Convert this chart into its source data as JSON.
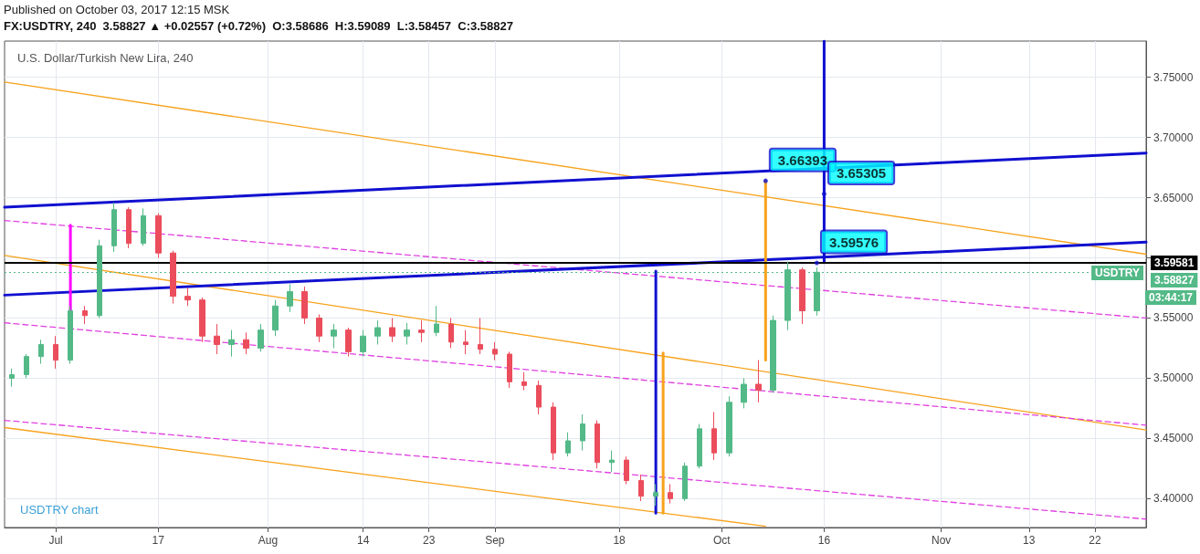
{
  "chart_data": {
    "type": "candlestick",
    "title": "U.S. Dollar/Turkish New Lira, 240",
    "subtitle": "FX:USDTRY, 240  3.58827 ▲ +0.02557 (+0.72%)  O:3.58686  H:3.59089  L:3.58457  C:3.58827",
    "annotations": [
      "Published on October 03, 2017 12:15 MSK",
      "USDTRY chart",
      "USDTRY",
      "03:44:17",
      {
        "text": "3.66393",
        "x": "2017-10-08",
        "y": 3.66393
      },
      {
        "text": "3.65305",
        "x": "2017-10-16",
        "y": 3.65305
      },
      {
        "text": "3.59576",
        "x": "2017-10-15",
        "y": 3.59576
      }
    ],
    "x": [
      "2017-06-27",
      "2017-06-29",
      "2017-07-01",
      "2017-07-03",
      "2017-07-05",
      "2017-07-07",
      "2017-07-09",
      "2017-07-11",
      "2017-07-13",
      "2017-07-15",
      "2017-07-17",
      "2017-07-19",
      "2017-07-21",
      "2017-07-23",
      "2017-07-25",
      "2017-07-27",
      "2017-07-29",
      "2017-07-31",
      "2017-08-02",
      "2017-08-04",
      "2017-08-06",
      "2017-08-08",
      "2017-08-10",
      "2017-08-12",
      "2017-08-14",
      "2017-08-16",
      "2017-08-18",
      "2017-08-20",
      "2017-08-22",
      "2017-08-24",
      "2017-08-26",
      "2017-08-28",
      "2017-08-30",
      "2017-09-01",
      "2017-09-03",
      "2017-09-05",
      "2017-09-07",
      "2017-09-09",
      "2017-09-11",
      "2017-09-13",
      "2017-09-15",
      "2017-09-17",
      "2017-09-19",
      "2017-09-21",
      "2017-09-23",
      "2017-09-25",
      "2017-09-27",
      "2017-09-29",
      "2017-10-01",
      "2017-10-03",
      "2017-10-05",
      "2017-10-07",
      "2017-10-09",
      "2017-10-11",
      "2017-10-13",
      "2017-10-15"
    ],
    "ohlc": [
      [
        3.5,
        3.508,
        3.493,
        3.503
      ],
      [
        3.503,
        3.52,
        3.5,
        3.518
      ],
      [
        3.518,
        3.532,
        3.512,
        3.528
      ],
      [
        3.528,
        3.535,
        3.508,
        3.515
      ],
      [
        3.515,
        3.56,
        3.512,
        3.556
      ],
      [
        3.556,
        3.56,
        3.545,
        3.552
      ],
      [
        3.552,
        3.615,
        3.55,
        3.61
      ],
      [
        3.61,
        3.646,
        3.605,
        3.64
      ],
      [
        3.64,
        3.642,
        3.608,
        3.612
      ],
      [
        3.612,
        3.641,
        3.61,
        3.635
      ],
      [
        3.635,
        3.637,
        3.6,
        3.604
      ],
      [
        3.604,
        3.606,
        3.562,
        3.568
      ],
      [
        3.568,
        3.575,
        3.56,
        3.565
      ],
      [
        3.565,
        3.567,
        3.53,
        3.535
      ],
      [
        3.535,
        3.545,
        3.52,
        3.528
      ],
      [
        3.528,
        3.54,
        3.518,
        3.532
      ],
      [
        3.532,
        3.538,
        3.52,
        3.525
      ],
      [
        3.525,
        3.545,
        3.522,
        3.54
      ],
      [
        3.54,
        3.565,
        3.535,
        3.56
      ],
      [
        3.56,
        3.578,
        3.555,
        3.572
      ],
      [
        3.572,
        3.576,
        3.545,
        3.55
      ],
      [
        3.55,
        3.553,
        3.53,
        3.535
      ],
      [
        3.535,
        3.545,
        3.525,
        3.54
      ],
      [
        3.54,
        3.542,
        3.518,
        3.522
      ],
      [
        3.522,
        3.54,
        3.518,
        3.535
      ],
      [
        3.535,
        3.548,
        3.528,
        3.542
      ],
      [
        3.542,
        3.55,
        3.53,
        3.535
      ],
      [
        3.535,
        3.546,
        3.528,
        3.54
      ],
      [
        3.54,
        3.548,
        3.53,
        3.538
      ],
      [
        3.538,
        3.56,
        3.535,
        3.545
      ],
      [
        3.545,
        3.55,
        3.525,
        3.53
      ],
      [
        3.53,
        3.54,
        3.52,
        3.528
      ],
      [
        3.528,
        3.55,
        3.52,
        3.524
      ],
      [
        3.524,
        3.53,
        3.515,
        3.52
      ],
      [
        3.52,
        3.522,
        3.492,
        3.497
      ],
      [
        3.497,
        3.505,
        3.49,
        3.494
      ],
      [
        3.494,
        3.498,
        3.47,
        3.476
      ],
      [
        3.476,
        3.48,
        3.432,
        3.438
      ],
      [
        3.438,
        3.455,
        3.435,
        3.448
      ],
      [
        3.448,
        3.47,
        3.44,
        3.462
      ],
      [
        3.462,
        3.465,
        3.425,
        3.43
      ],
      [
        3.43,
        3.44,
        3.422,
        3.432
      ],
      [
        3.432,
        3.435,
        3.412,
        3.415
      ],
      [
        3.415,
        3.42,
        3.398,
        3.402
      ],
      [
        3.402,
        3.412,
        3.394,
        3.405
      ],
      [
        3.405,
        3.412,
        3.396,
        3.4
      ],
      [
        3.4,
        3.43,
        3.398,
        3.427
      ],
      [
        3.427,
        3.462,
        3.425,
        3.458
      ],
      [
        3.458,
        3.472,
        3.432,
        3.438
      ],
      [
        3.438,
        3.485,
        3.435,
        3.48
      ],
      [
        3.48,
        3.5,
        3.475,
        3.495
      ],
      [
        3.495,
        3.515,
        3.48,
        3.49
      ],
      [
        3.49,
        3.552,
        3.488,
        3.548
      ],
      [
        3.548,
        3.597,
        3.54,
        3.59
      ],
      [
        3.59,
        3.592,
        3.545,
        3.556
      ],
      [
        3.556,
        3.592,
        3.552,
        3.588
      ]
    ],
    "series": [
      {
        "type": "line",
        "x": [
          "2017-06-26",
          "2017-11-29"
        ],
        "values": [
          3.746,
          3.603
        ],
        "color": "#f7a21b",
        "line_style": "solid"
      },
      {
        "type": "line",
        "x": [
          "2017-06-26",
          "2017-11-29"
        ],
        "values": [
          3.602,
          3.457
        ],
        "color": "#f7a21b",
        "line_style": "solid"
      },
      {
        "type": "line",
        "x": [
          "2017-06-26",
          "2017-10-08"
        ],
        "values": [
          3.459,
          3.377
        ],
        "color": "#f7a21b",
        "line_style": "solid"
      },
      {
        "type": "line",
        "x": [
          "2017-06-26",
          "2017-11-29"
        ],
        "values": [
          3.631,
          3.55
        ],
        "color": "#e040e0",
        "line_style": "dashed"
      },
      {
        "type": "line",
        "x": [
          "2017-06-26",
          "2017-11-29"
        ],
        "values": [
          3.546,
          3.461
        ],
        "color": "#e040e0",
        "line_style": "dashed"
      },
      {
        "type": "line",
        "x": [
          "2017-06-26",
          "2017-11-29"
        ],
        "values": [
          3.465,
          3.383
        ],
        "color": "#e040e0",
        "line_style": "dashed"
      },
      {
        "type": "line",
        "x": [
          "2017-06-26",
          "2017-11-29"
        ],
        "values": [
          3.642,
          3.687
        ],
        "color": "#1010d0",
        "line_style": "solid"
      },
      {
        "type": "line",
        "x": [
          "2017-06-26",
          "2017-11-29"
        ],
        "values": [
          3.569,
          3.613
        ],
        "color": "#1010d0",
        "line_style": "solid"
      },
      {
        "type": "line",
        "x": [
          "2017-07-05",
          "2017-07-05"
        ],
        "values": [
          3.554,
          3.627
        ],
        "color": "#ff00ff",
        "line_style": "solid"
      },
      {
        "type": "line",
        "x": [
          "2017-09-23",
          "2017-09-23"
        ],
        "values": [
          3.388,
          3.589
        ],
        "color": "#1010d0",
        "line_style": "solid"
      },
      {
        "type": "line",
        "x": [
          "2017-09-24",
          "2017-09-24"
        ],
        "values": [
          3.388,
          3.521
        ],
        "color": "#f7a21b",
        "line_style": "solid"
      },
      {
        "type": "line",
        "x": [
          "2017-10-08",
          "2017-10-08"
        ],
        "values": [
          3.515,
          3.664
        ],
        "color": "#f7a21b",
        "line_style": "solid"
      },
      {
        "type": "line",
        "x": [
          "2017-10-16",
          "2017-10-16"
        ],
        "values": [
          3.596,
          3.78
        ],
        "color": "#1010d0",
        "line_style": "solid"
      }
    ],
    "ref_lines": [
      {
        "axis": "y",
        "value": 3.59581,
        "label": "3.59581",
        "color": "#000000",
        "line_style": "solid"
      },
      {
        "axis": "y",
        "value": 3.58827,
        "label": "3.58827",
        "color": "#53b987",
        "line_style": "dotted"
      }
    ],
    "xlim": [
      "2017-06-26",
      "2017-11-29"
    ],
    "xticks": [
      {
        "value": "2017-07-03",
        "label": "Jul"
      },
      {
        "value": "2017-07-17",
        "label": "17"
      },
      {
        "value": "2017-08-01",
        "label": "Aug"
      },
      {
        "value": "2017-08-14",
        "label": "14"
      },
      {
        "value": "2017-08-23",
        "label": "23"
      },
      {
        "value": "2017-09-01",
        "label": "Sep"
      },
      {
        "value": "2017-09-18",
        "label": "18"
      },
      {
        "value": "2017-10-02",
        "label": "Oct"
      },
      {
        "value": "2017-10-16",
        "label": "16"
      },
      {
        "value": "2017-11-01",
        "label": "Nov"
      },
      {
        "value": "2017-11-13",
        "label": "13"
      },
      {
        "value": "2017-11-22",
        "label": "22"
      }
    ],
    "ylim": [
      3.376,
      3.78
    ],
    "yticks": [
      {
        "value": 3.4,
        "label": "3.40000"
      },
      {
        "value": 3.45,
        "label": "3.45000"
      },
      {
        "value": 3.5,
        "label": "3.50000"
      },
      {
        "value": 3.55,
        "label": "3.55000"
      },
      {
        "value": 3.6,
        "label": null
      },
      {
        "value": 3.65,
        "label": "3.65000"
      },
      {
        "value": 3.7,
        "label": "3.70000"
      },
      {
        "value": 3.75,
        "label": "3.75000"
      }
    ],
    "grid": true
  }
}
